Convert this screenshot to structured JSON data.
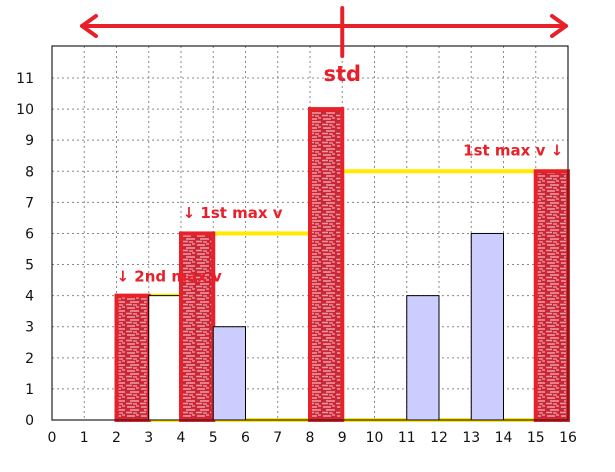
{
  "chart_data": {
    "type": "bar",
    "title": "",
    "xlabel": "",
    "ylabel": "",
    "x_ticks": [
      "0",
      "1",
      "2",
      "3",
      "4",
      "5",
      "6",
      "7",
      "8",
      "9",
      "10",
      "11",
      "12",
      "13",
      "14",
      "15",
      "16"
    ],
    "y_ticks": [
      "0",
      "1",
      "2",
      "3",
      "4",
      "5",
      "6",
      "7",
      "8",
      "9",
      "10",
      "11"
    ],
    "xlim": [
      0,
      16
    ],
    "ylim": [
      0,
      11
    ],
    "grid": true,
    "bars": [
      {
        "x0": 2,
        "x1": 3,
        "value": 4,
        "style": "red-highlight"
      },
      {
        "x0": 3,
        "x1": 4,
        "value": 4,
        "style": "white"
      },
      {
        "x0": 4,
        "x1": 5,
        "value": 6,
        "style": "red-highlight"
      },
      {
        "x0": 5,
        "x1": 6,
        "value": 3,
        "style": "lavender"
      },
      {
        "x0": 8,
        "x1": 9,
        "value": 10,
        "style": "red-highlight"
      },
      {
        "x0": 11,
        "x1": 12,
        "value": 4,
        "style": "lavender"
      },
      {
        "x0": 13,
        "x1": 14,
        "value": 6,
        "style": "lavender"
      },
      {
        "x0": 15,
        "x1": 16,
        "value": 8,
        "style": "red-highlight"
      }
    ],
    "regions": [
      {
        "x0": 3,
        "x1": 4,
        "height": 4
      },
      {
        "x0": 4,
        "x1": 8,
        "height": 6
      },
      {
        "x0": 9,
        "x1": 16,
        "height": 8
      }
    ],
    "arrow": {
      "x0": 0,
      "x1": 16,
      "pivot": 9
    },
    "annotations": [
      {
        "id": "std",
        "text": "std",
        "x": 9,
        "y": 10.9
      },
      {
        "id": "second_max_left",
        "text": "↓  2nd max v",
        "x": 2,
        "y": 4.45
      },
      {
        "id": "first_max_left",
        "text": "↓  1st max v",
        "x": 4.05,
        "y": 6.5
      },
      {
        "id": "first_max_right",
        "text": "1st max v  ↓",
        "x": 15.85,
        "y": 8.5
      }
    ]
  },
  "colors": {
    "red": "#e8202a",
    "red_fill": "#c92435",
    "yellow": "#ffea00",
    "lavender": "#ccccff",
    "grid": "#888888",
    "axis": "#222222"
  }
}
